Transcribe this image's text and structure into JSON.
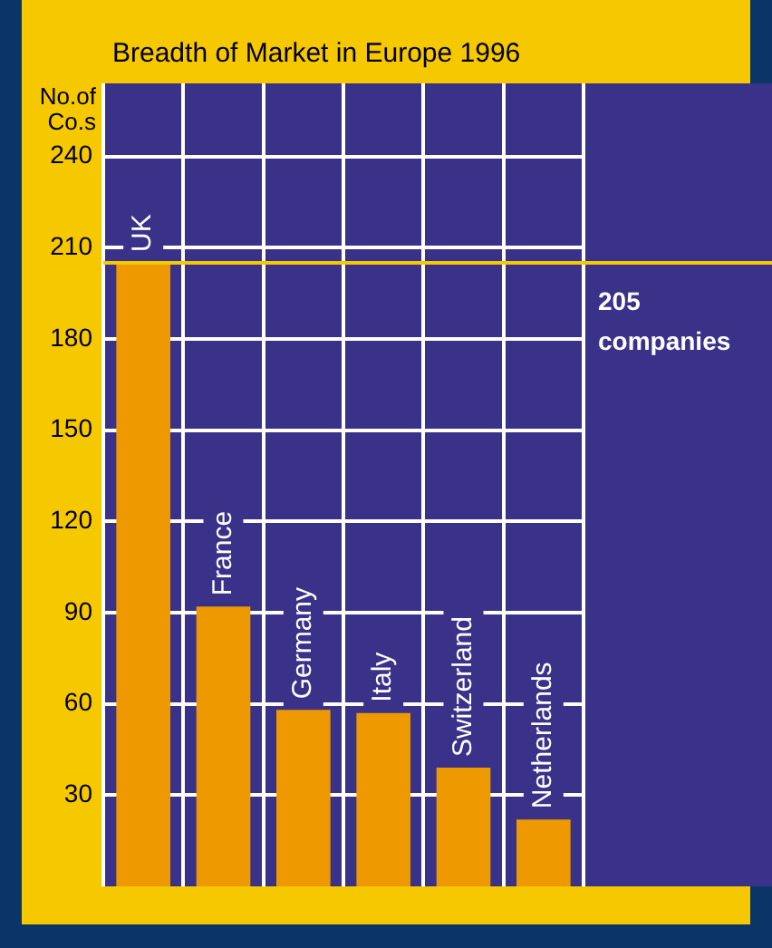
{
  "chart_data": {
    "type": "bar",
    "title": "Breadth of Market in Europe 1996",
    "ylabel": "No.of Co.s",
    "categories": [
      "UK",
      "France",
      "Germany",
      "Italy",
      "Switzerland",
      "Netherlands"
    ],
    "values": [
      205,
      92,
      58,
      57,
      39,
      22
    ],
    "color": "#ee9900",
    "ylim": [
      0,
      264
    ],
    "yticks": [
      30,
      60,
      90,
      120,
      150,
      180,
      210,
      240
    ],
    "grid": true,
    "ref_lines": [
      {
        "axis": "y",
        "value": 205,
        "label": "205 companies",
        "color": "#f5c800"
      }
    ]
  }
}
